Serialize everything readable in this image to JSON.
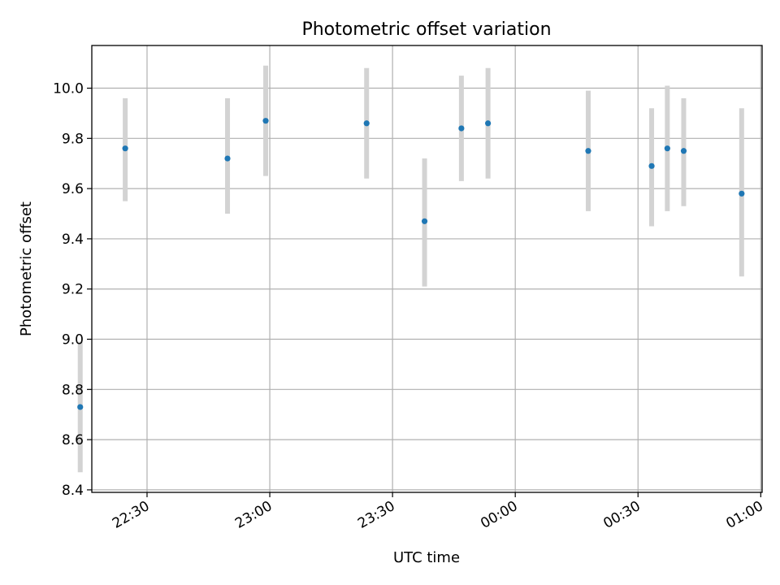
{
  "chart_data": {
    "type": "scatter",
    "title": "Photometric offset variation",
    "xlabel": "UTC time",
    "ylabel": "Photometric offset",
    "x_axis": {
      "kind": "time",
      "range": [
        "22:16:30",
        "01:00:20"
      ],
      "ticks": [
        "22:30",
        "23:00",
        "23:30",
        "00:00",
        "00:30",
        "01:00"
      ]
    },
    "y_axis": {
      "range": [
        8.39,
        10.17
      ],
      "ticks": [
        "8.4",
        "8.6",
        "8.8",
        "9.0",
        "9.2",
        "9.4",
        "9.6",
        "9.8",
        "10.0"
      ]
    },
    "grid": true,
    "marker_color": "#1f77b4",
    "errorbar_color": "#d3d3d3",
    "points": [
      {
        "time": "22:13:40",
        "y": 8.73,
        "low": 8.47,
        "high": 8.99
      },
      {
        "time": "22:24:40",
        "y": 9.76,
        "low": 9.55,
        "high": 9.96
      },
      {
        "time": "22:49:40",
        "y": 9.72,
        "low": 9.5,
        "high": 9.96
      },
      {
        "time": "22:59:00",
        "y": 9.87,
        "low": 9.65,
        "high": 10.09
      },
      {
        "time": "23:23:40",
        "y": 9.86,
        "low": 9.64,
        "high": 10.08
      },
      {
        "time": "23:37:50",
        "y": 9.47,
        "low": 9.21,
        "high": 9.72
      },
      {
        "time": "23:46:50",
        "y": 9.84,
        "low": 9.63,
        "high": 10.05
      },
      {
        "time": "23:53:20",
        "y": 9.86,
        "low": 9.64,
        "high": 10.08
      },
      {
        "time": "00:17:50",
        "y": 9.75,
        "low": 9.51,
        "high": 9.99
      },
      {
        "time": "00:33:20",
        "y": 9.69,
        "low": 9.45,
        "high": 9.92
      },
      {
        "time": "00:37:10",
        "y": 9.76,
        "low": 9.51,
        "high": 10.01
      },
      {
        "time": "00:41:10",
        "y": 9.75,
        "low": 9.53,
        "high": 9.96
      },
      {
        "time": "00:55:20",
        "y": 9.58,
        "low": 9.25,
        "high": 9.92
      }
    ]
  }
}
